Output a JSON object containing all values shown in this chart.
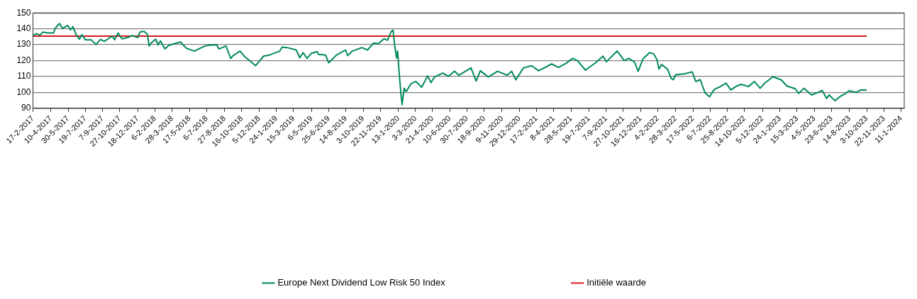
{
  "chart_data": {
    "type": "line",
    "ylim": [
      90,
      150
    ],
    "yticks": [
      90,
      100,
      110,
      120,
      130,
      140,
      150
    ],
    "xlim": [
      "2017-02-17",
      "2024-01-20"
    ],
    "xticks": [
      {
        "value": "2017-02-17",
        "label": "17-2-2017"
      },
      {
        "value": "2017-04-10",
        "label": "10-4-2017"
      },
      {
        "value": "2017-05-30",
        "label": "30-5-2017"
      },
      {
        "value": "2017-07-19",
        "label": "19-7-2017"
      },
      {
        "value": "2017-09-07",
        "label": "7-9-2017"
      },
      {
        "value": "2017-10-27",
        "label": "27-10-2017"
      },
      {
        "value": "2017-12-18",
        "label": "18-12-2017"
      },
      {
        "value": "2018-02-06",
        "label": "6-2-2018"
      },
      {
        "value": "2018-03-28",
        "label": "28-3-2018"
      },
      {
        "value": "2018-05-17",
        "label": "17-5-2018"
      },
      {
        "value": "2018-07-06",
        "label": "6-7-2018"
      },
      {
        "value": "2018-08-27",
        "label": "27-8-2018"
      },
      {
        "value": "2018-10-16",
        "label": "16-10-2018"
      },
      {
        "value": "2018-12-05",
        "label": "5-12-2018"
      },
      {
        "value": "2019-01-24",
        "label": "24-1-2019"
      },
      {
        "value": "2019-03-15",
        "label": "15-3-2019"
      },
      {
        "value": "2019-05-06",
        "label": "6-5-2019"
      },
      {
        "value": "2019-06-25",
        "label": "25-6-2019"
      },
      {
        "value": "2019-08-14",
        "label": "14-8-2019"
      },
      {
        "value": "2019-10-03",
        "label": "3-10-2019"
      },
      {
        "value": "2019-11-22",
        "label": "22-11-2019"
      },
      {
        "value": "2020-01-13",
        "label": "13-1-2020"
      },
      {
        "value": "2020-03-03",
        "label": "3-3-2020"
      },
      {
        "value": "2020-04-21",
        "label": "21-4-2020"
      },
      {
        "value": "2020-06-10",
        "label": "10-6-2020"
      },
      {
        "value": "2020-07-30",
        "label": "30-7-2020"
      },
      {
        "value": "2020-09-18",
        "label": "18-9-2020"
      },
      {
        "value": "2020-11-09",
        "label": "9-11-2020"
      },
      {
        "value": "2020-12-29",
        "label": "29-12-2020"
      },
      {
        "value": "2021-02-17",
        "label": "17-2-2021"
      },
      {
        "value": "2021-04-08",
        "label": "8-4-2021"
      },
      {
        "value": "2021-05-28",
        "label": "28-5-2021"
      },
      {
        "value": "2021-07-19",
        "label": "19-7-2021"
      },
      {
        "value": "2021-09-07",
        "label": "7-9-2021"
      },
      {
        "value": "2021-10-27",
        "label": "27-10-2021"
      },
      {
        "value": "2021-12-16",
        "label": "16-12-2021"
      },
      {
        "value": "2022-02-04",
        "label": "4-2-2022"
      },
      {
        "value": "2022-03-28",
        "label": "28-3-2022"
      },
      {
        "value": "2022-05-17",
        "label": "17-5-2022"
      },
      {
        "value": "2022-07-06",
        "label": "6-7-2022"
      },
      {
        "value": "2022-08-25",
        "label": "25-8-2022"
      },
      {
        "value": "2022-10-14",
        "label": "14-10-2022"
      },
      {
        "value": "2022-12-05",
        "label": "5-12-2022"
      },
      {
        "value": "2023-01-24",
        "label": "24-1-2023"
      },
      {
        "value": "2023-03-15",
        "label": "15-3-2023"
      },
      {
        "value": "2023-05-04",
        "label": "4-5-2023"
      },
      {
        "value": "2023-06-23",
        "label": "23-6-2023"
      },
      {
        "value": "2023-08-14",
        "label": "14-8-2023"
      },
      {
        "value": "2023-10-03",
        "label": "3-10-2023"
      },
      {
        "value": "2023-11-22",
        "label": "22-11-2023"
      },
      {
        "value": "2024-01-11",
        "label": "11-1-2024"
      }
    ],
    "grid": "y",
    "legend": "bottom",
    "marker": "none",
    "line_style": "solid",
    "series": [
      {
        "name": "Europe Next Dividend Low Risk 50 Index",
        "color": "#008a5a",
        "x": [
          "2017-02-17",
          "2017-02-27",
          "2017-03-09",
          "2017-03-18",
          "2017-04-01",
          "2017-04-18",
          "2017-04-22",
          "2017-05-05",
          "2017-05-14",
          "2017-05-29",
          "2017-06-06",
          "2017-06-13",
          "2017-06-23",
          "2017-07-02",
          "2017-07-09",
          "2017-07-19",
          "2017-08-05",
          "2017-08-19",
          "2017-09-01",
          "2017-09-12",
          "2017-10-05",
          "2017-10-12",
          "2017-10-22",
          "2017-11-02",
          "2017-11-19",
          "2017-12-02",
          "2017-12-18",
          "2017-12-25",
          "2018-01-05",
          "2018-01-15",
          "2018-01-20",
          "2018-01-26",
          "2018-02-08",
          "2018-02-15",
          "2018-02-22",
          "2018-03-07",
          "2018-03-18",
          "2018-04-03",
          "2018-04-21",
          "2018-05-08",
          "2018-05-31",
          "2018-07-01",
          "2018-07-14",
          "2018-08-04",
          "2018-08-11",
          "2018-08-31",
          "2018-09-14",
          "2018-09-21",
          "2018-10-11",
          "2018-10-24",
          "2018-11-10",
          "2018-11-25",
          "2018-12-18",
          "2019-01-04",
          "2019-02-03",
          "2019-02-10",
          "2019-02-24",
          "2019-03-23",
          "2019-04-02",
          "2019-04-12",
          "2019-04-23",
          "2019-05-06",
          "2019-05-23",
          "2019-05-26",
          "2019-06-16",
          "2019-06-25",
          "2019-07-16",
          "2019-07-27",
          "2019-08-13",
          "2019-08-19",
          "2019-09-02",
          "2019-09-29",
          "2019-10-16",
          "2019-11-02",
          "2019-11-16",
          "2019-12-03",
          "2019-12-13",
          "2019-12-23",
          "2019-12-29",
          "2020-01-02",
          "2020-01-08",
          "2020-01-11",
          "2020-01-16",
          "2020-01-21",
          "2020-01-24",
          "2020-01-30",
          "2020-02-05",
          "2020-02-19",
          "2020-03-04",
          "2020-03-21",
          "2020-04-07",
          "2020-04-17",
          "2020-04-27",
          "2020-05-21",
          "2020-06-07",
          "2020-06-24",
          "2020-07-07",
          "2020-08-11",
          "2020-08-26",
          "2020-09-07",
          "2020-09-30",
          "2020-10-27",
          "2020-11-24",
          "2020-12-07",
          "2020-12-19",
          "2021-01-10",
          "2021-02-03",
          "2021-02-23",
          "2021-04-02",
          "2021-04-22",
          "2021-05-13",
          "2021-06-02",
          "2021-06-16",
          "2021-07-09",
          "2021-08-09",
          "2021-08-29",
          "2021-09-08",
          "2021-10-09",
          "2021-10-19",
          "2021-10-29",
          "2021-11-12",
          "2021-11-29",
          "2021-12-09",
          "2021-12-23",
          "2022-01-11",
          "2022-01-23",
          "2022-02-02",
          "2022-02-07",
          "2022-02-15",
          "2022-03-04",
          "2022-03-15",
          "2022-03-21",
          "2022-03-28",
          "2022-04-24",
          "2022-05-15",
          "2022-05-25",
          "2022-06-07",
          "2022-06-21",
          "2022-07-04",
          "2022-07-18",
          "2022-08-01",
          "2022-08-21",
          "2022-09-04",
          "2022-09-21",
          "2022-10-04",
          "2022-10-25",
          "2022-11-11",
          "2022-11-28",
          "2022-12-11",
          "2023-01-04",
          "2023-01-28",
          "2023-02-14",
          "2023-03-10",
          "2023-03-20",
          "2023-04-04",
          "2023-04-26",
          "2023-05-13",
          "2023-05-27",
          "2023-06-09",
          "2023-06-16",
          "2023-07-03",
          "2023-07-17",
          "2023-08-03",
          "2023-08-13",
          "2023-09-03",
          "2023-09-16",
          "2023-10-03"
        ],
        "values": [
          135.6,
          137.0,
          136.0,
          137.9,
          137.4,
          137.4,
          140.1,
          143.3,
          140.2,
          142.1,
          139.3,
          141.4,
          136.0,
          133.5,
          136.3,
          133.1,
          133.1,
          130.1,
          133.3,
          132.1,
          135.4,
          133.1,
          137.4,
          133.7,
          134.5,
          135.8,
          134.5,
          138.1,
          138.4,
          136.7,
          129.2,
          131.0,
          133.5,
          129.9,
          132.4,
          127.4,
          129.6,
          130.6,
          131.7,
          127.8,
          126.0,
          129.2,
          129.7,
          129.9,
          127.3,
          129.2,
          121.4,
          123.2,
          126.0,
          122.5,
          119.6,
          116.8,
          122.8,
          123.5,
          126.0,
          128.5,
          128.2,
          126.7,
          121.8,
          125.0,
          121.4,
          124.6,
          125.7,
          123.9,
          123.5,
          118.6,
          123.2,
          124.6,
          126.7,
          123.2,
          126.0,
          128.2,
          126.7,
          131.0,
          130.6,
          133.8,
          132.8,
          138.1,
          139.1,
          130.3,
          121.8,
          126.0,
          111.1,
          98.4,
          92.3,
          102.6,
          100.5,
          105.5,
          106.9,
          103.3,
          110.4,
          106.2,
          109.7,
          112.2,
          110.1,
          113.3,
          110.8,
          115.4,
          107.2,
          113.6,
          109.7,
          113.3,
          110.8,
          113.3,
          107.9,
          115.4,
          116.8,
          113.6,
          117.9,
          115.7,
          118.2,
          121.4,
          120.0,
          114.0,
          118.9,
          122.8,
          119.3,
          126.0,
          123.2,
          120.0,
          121.4,
          118.9,
          113.3,
          121.1,
          125.0,
          124.3,
          120.4,
          114.7,
          117.5,
          114.7,
          108.7,
          108.0,
          111.1,
          111.8,
          112.9,
          106.9,
          108.0,
          99.8,
          97.3,
          101.9,
          103.3,
          105.8,
          101.6,
          104.0,
          105.1,
          103.7,
          106.9,
          102.6,
          105.8,
          109.9,
          107.9,
          104.0,
          102.3,
          99.4,
          102.6,
          98.4,
          99.8,
          101.2,
          96.2,
          98.4,
          94.8,
          97.3,
          99.4,
          101.1,
          100.0,
          101.6,
          101.4
        ]
      },
      {
        "name": "Initiële waarde",
        "color": "#d71920",
        "x": [
          "2017-02-17",
          "2023-10-03"
        ],
        "values": [
          135.4,
          135.4
        ]
      }
    ]
  }
}
